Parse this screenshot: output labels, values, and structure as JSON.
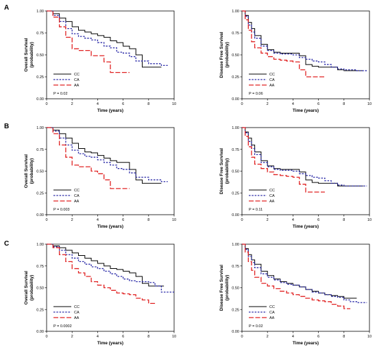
{
  "legend_labels": [
    "CC",
    "CA",
    "AA"
  ],
  "colors": {
    "CC": "#000000",
    "CA": "#2b2ba8",
    "AA": "#e02020"
  },
  "chart_data": [
    {
      "type": "line",
      "panel": "A",
      "ylabel": "Overall Survival (probability)",
      "xlabel": "Time (years)",
      "xlim": [
        0,
        10
      ],
      "ylim": [
        0,
        1
      ],
      "xticks": [
        0,
        2,
        4,
        6,
        8,
        10
      ],
      "yticks": [
        0.0,
        0.25,
        0.5,
        0.75,
        1.0
      ],
      "legend_position": "bottom-left",
      "pvalue": "P = 0.02",
      "series": [
        {
          "name": "CC",
          "x": [
            0,
            0.5,
            1,
            1.5,
            2,
            2.5,
            3,
            3.5,
            4,
            4.5,
            5,
            5.5,
            6,
            6.5,
            7,
            7.5,
            8,
            8.5,
            9
          ],
          "y": [
            1,
            0.97,
            0.92,
            0.88,
            0.82,
            0.78,
            0.76,
            0.74,
            0.72,
            0.7,
            0.66,
            0.64,
            0.6,
            0.57,
            0.5,
            0.36,
            0.36,
            0.36,
            0.36
          ]
        },
        {
          "name": "CA",
          "x": [
            0,
            0.5,
            1,
            1.5,
            2,
            2.5,
            3,
            3.5,
            4,
            4.5,
            5,
            5.5,
            6,
            6.5,
            7,
            8,
            9,
            9.5
          ],
          "y": [
            1,
            0.95,
            0.88,
            0.8,
            0.74,
            0.71,
            0.69,
            0.67,
            0.64,
            0.6,
            0.58,
            0.53,
            0.52,
            0.48,
            0.43,
            0.4,
            0.38,
            0.38
          ]
        },
        {
          "name": "AA",
          "x": [
            0,
            0.5,
            1,
            1.5,
            2,
            2.5,
            3,
            3.5,
            4,
            4.5,
            5,
            5.5,
            6,
            6.5
          ],
          "y": [
            1,
            0.93,
            0.82,
            0.7,
            0.57,
            0.55,
            0.55,
            0.49,
            0.49,
            0.42,
            0.3,
            0.3,
            0.3,
            0.3
          ]
        }
      ]
    },
    {
      "type": "line",
      "panel": "A",
      "ylabel": "Disease Free Survival (probability)",
      "xlabel": "Time (years)",
      "xlim": [
        0,
        10
      ],
      "ylim": [
        0,
        1
      ],
      "xticks": [
        0,
        2,
        4,
        6,
        8,
        10
      ],
      "yticks": [
        0.0,
        0.25,
        0.5,
        0.75,
        1.0
      ],
      "legend_position": "bottom-left",
      "pvalue": "P = 0.06",
      "series": [
        {
          "name": "CC",
          "x": [
            0,
            0.25,
            0.5,
            0.75,
            1,
            1.5,
            2,
            2.5,
            3,
            3.5,
            4,
            4.5,
            5,
            5.5,
            6,
            6.5,
            7,
            7.5,
            8,
            9,
            9.5
          ],
          "y": [
            1,
            0.95,
            0.87,
            0.8,
            0.72,
            0.62,
            0.56,
            0.53,
            0.52,
            0.52,
            0.52,
            0.49,
            0.39,
            0.37,
            0.36,
            0.36,
            0.36,
            0.33,
            0.32,
            0.32,
            0.32
          ]
        },
        {
          "name": "CA",
          "x": [
            0,
            0.25,
            0.5,
            0.75,
            1,
            1.5,
            2,
            2.5,
            3,
            3.5,
            4,
            4.5,
            5,
            5.5,
            6,
            6.5,
            7,
            7.5,
            8,
            9,
            9.8
          ],
          "y": [
            1,
            0.94,
            0.84,
            0.76,
            0.69,
            0.6,
            0.55,
            0.52,
            0.51,
            0.51,
            0.5,
            0.47,
            0.45,
            0.43,
            0.42,
            0.39,
            0.36,
            0.34,
            0.33,
            0.32,
            0.32
          ]
        },
        {
          "name": "AA",
          "x": [
            0,
            0.25,
            0.5,
            0.75,
            1,
            1.5,
            2,
            2.5,
            3,
            3.5,
            4,
            4.5,
            5,
            5.5,
            6,
            6.5
          ],
          "y": [
            1,
            0.9,
            0.78,
            0.65,
            0.58,
            0.52,
            0.48,
            0.45,
            0.44,
            0.43,
            0.42,
            0.33,
            0.25,
            0.25,
            0.25,
            0.25
          ]
        }
      ]
    },
    {
      "type": "line",
      "panel": "B",
      "ylabel": "Overall Survival (probability)",
      "xlabel": "Time (years)",
      "xlim": [
        0,
        10
      ],
      "ylim": [
        0,
        1
      ],
      "xticks": [
        0,
        2,
        4,
        6,
        8,
        10
      ],
      "yticks": [
        0.0,
        0.25,
        0.5,
        0.75,
        1.0
      ],
      "legend_position": "bottom-left",
      "pvalue": "P = 0.003",
      "series": [
        {
          "name": "CC",
          "x": [
            0,
            0.5,
            1,
            1.5,
            2,
            2.5,
            3,
            3.5,
            4,
            4.5,
            5,
            5.5,
            6,
            6.5,
            7,
            7.5,
            8,
            8.5,
            9
          ],
          "y": [
            1,
            0.97,
            0.93,
            0.88,
            0.82,
            0.76,
            0.72,
            0.71,
            0.68,
            0.65,
            0.62,
            0.6,
            0.6,
            0.52,
            0.4,
            0.36,
            0.36,
            0.36,
            0.36
          ]
        },
        {
          "name": "CA",
          "x": [
            0,
            0.5,
            1,
            1.5,
            2,
            2.5,
            3,
            3.5,
            4,
            4.5,
            5,
            5.5,
            6,
            6.5,
            7,
            8,
            9,
            9.5
          ],
          "y": [
            1,
            0.96,
            0.88,
            0.8,
            0.74,
            0.7,
            0.67,
            0.66,
            0.63,
            0.6,
            0.57,
            0.53,
            0.52,
            0.48,
            0.43,
            0.4,
            0.38,
            0.38
          ]
        },
        {
          "name": "AA",
          "x": [
            0,
            0.5,
            1,
            1.5,
            2,
            2.5,
            3,
            3.5,
            4,
            4.5,
            5,
            5.5,
            6,
            6.5
          ],
          "y": [
            1,
            0.93,
            0.8,
            0.66,
            0.57,
            0.55,
            0.55,
            0.5,
            0.47,
            0.4,
            0.3,
            0.3,
            0.3,
            0.3
          ]
        }
      ]
    },
    {
      "type": "line",
      "panel": "B",
      "ylabel": "Disease Free Survival (probability)",
      "xlabel": "Time (years)",
      "xlim": [
        0,
        10
      ],
      "ylim": [
        0,
        1
      ],
      "xticks": [
        0,
        2,
        4,
        6,
        8,
        10
      ],
      "yticks": [
        0.0,
        0.25,
        0.5,
        0.75,
        1.0
      ],
      "legend_position": "bottom-left",
      "pvalue": "P = 0.11",
      "series": [
        {
          "name": "CC",
          "x": [
            0,
            0.25,
            0.5,
            0.75,
            1,
            1.5,
            2,
            2.5,
            3,
            3.5,
            4,
            4.5,
            5,
            5.5,
            6,
            6.5,
            7,
            7.5,
            8,
            9,
            9.5
          ],
          "y": [
            1,
            0.95,
            0.88,
            0.8,
            0.72,
            0.62,
            0.56,
            0.53,
            0.52,
            0.52,
            0.52,
            0.49,
            0.4,
            0.37,
            0.36,
            0.36,
            0.36,
            0.33,
            0.33,
            0.33,
            0.33
          ]
        },
        {
          "name": "CA",
          "x": [
            0,
            0.25,
            0.5,
            0.75,
            1,
            1.5,
            2,
            2.5,
            3,
            3.5,
            4,
            4.5,
            5,
            5.5,
            6,
            6.5,
            7,
            7.5,
            8,
            9,
            9.8
          ],
          "y": [
            1,
            0.94,
            0.84,
            0.76,
            0.69,
            0.6,
            0.55,
            0.52,
            0.51,
            0.51,
            0.5,
            0.47,
            0.45,
            0.43,
            0.42,
            0.39,
            0.36,
            0.34,
            0.33,
            0.33,
            0.33
          ]
        },
        {
          "name": "AA",
          "x": [
            0,
            0.25,
            0.5,
            0.75,
            1,
            1.5,
            2,
            2.5,
            3,
            3.5,
            4,
            4.5,
            5,
            5.5,
            6,
            6.5
          ],
          "y": [
            1,
            0.9,
            0.78,
            0.66,
            0.58,
            0.53,
            0.49,
            0.46,
            0.45,
            0.44,
            0.43,
            0.35,
            0.26,
            0.26,
            0.26,
            0.26
          ]
        }
      ]
    },
    {
      "type": "line",
      "panel": "C",
      "ylabel": "Overall Survival (probability)",
      "xlabel": "Time (years)",
      "xlim": [
        0,
        10
      ],
      "ylim": [
        0,
        1
      ],
      "xticks": [
        0,
        2,
        4,
        6,
        8,
        10
      ],
      "yticks": [
        0.0,
        0.25,
        0.5,
        0.75,
        1.0
      ],
      "legend_position": "bottom-left",
      "pvalue": "P = 0.0002",
      "series": [
        {
          "name": "CC",
          "x": [
            0,
            0.5,
            1,
            1.5,
            2,
            2.5,
            3,
            3.5,
            4,
            4.5,
            5,
            5.5,
            6,
            6.5,
            7,
            7.5,
            8,
            8.5,
            9.2
          ],
          "y": [
            1,
            0.98,
            0.96,
            0.93,
            0.9,
            0.87,
            0.84,
            0.81,
            0.78,
            0.75,
            0.72,
            0.71,
            0.69,
            0.67,
            0.63,
            0.55,
            0.52,
            0.52,
            0.52
          ]
        },
        {
          "name": "CA",
          "x": [
            0,
            0.5,
            1,
            1.5,
            2,
            2.5,
            3,
            3.5,
            4,
            4.5,
            5,
            5.5,
            6,
            6.5,
            7,
            7.5,
            8,
            8.5,
            9,
            9.5,
            10
          ],
          "y": [
            1,
            0.97,
            0.93,
            0.88,
            0.84,
            0.8,
            0.77,
            0.74,
            0.72,
            0.69,
            0.66,
            0.63,
            0.6,
            0.58,
            0.57,
            0.57,
            0.56,
            0.52,
            0.45,
            0.45,
            0.45
          ]
        },
        {
          "name": "AA",
          "x": [
            0,
            0.5,
            1,
            1.5,
            2,
            2.5,
            3,
            3.5,
            4,
            4.5,
            5,
            5.5,
            6,
            6.5,
            7,
            7.5,
            8,
            8.5
          ],
          "y": [
            1,
            0.96,
            0.88,
            0.8,
            0.72,
            0.67,
            0.63,
            0.57,
            0.53,
            0.5,
            0.47,
            0.44,
            0.43,
            0.42,
            0.38,
            0.36,
            0.32,
            0.32
          ]
        }
      ]
    },
    {
      "type": "line",
      "panel": "C",
      "ylabel": "Disease Free Survival (probability)",
      "xlabel": "Time (years)",
      "xlim": [
        0,
        10
      ],
      "ylim": [
        0,
        1
      ],
      "xticks": [
        0,
        2,
        4,
        6,
        8,
        10
      ],
      "yticks": [
        0.0,
        0.25,
        0.5,
        0.75,
        1.0
      ],
      "legend_position": "bottom-left",
      "pvalue": "P = 0.02",
      "series": [
        {
          "name": "CC",
          "x": [
            0,
            0.25,
            0.5,
            0.75,
            1,
            1.5,
            2,
            2.5,
            3,
            3.5,
            4,
            4.5,
            5,
            5.5,
            6,
            6.5,
            7,
            7.5,
            8,
            8.5,
            9
          ],
          "y": [
            1,
            0.95,
            0.88,
            0.82,
            0.77,
            0.69,
            0.64,
            0.6,
            0.57,
            0.55,
            0.53,
            0.51,
            0.48,
            0.46,
            0.44,
            0.42,
            0.41,
            0.4,
            0.38,
            0.38,
            0.38
          ]
        },
        {
          "name": "CA",
          "x": [
            0,
            0.25,
            0.5,
            0.75,
            1,
            1.5,
            2,
            2.5,
            3,
            3.5,
            4,
            4.5,
            5,
            5.5,
            6,
            6.5,
            7,
            7.5,
            8,
            8.5,
            9,
            9.8
          ],
          "y": [
            1,
            0.94,
            0.86,
            0.79,
            0.73,
            0.66,
            0.62,
            0.59,
            0.56,
            0.54,
            0.53,
            0.51,
            0.48,
            0.45,
            0.44,
            0.42,
            0.4,
            0.39,
            0.36,
            0.34,
            0.33,
            0.33
          ]
        },
        {
          "name": "AA",
          "x": [
            0,
            0.25,
            0.5,
            0.75,
            1,
            1.5,
            2,
            2.5,
            3,
            3.5,
            4,
            4.5,
            5,
            5.5,
            6,
            6.5,
            7,
            7.5,
            8,
            8.5
          ],
          "y": [
            1,
            0.91,
            0.8,
            0.7,
            0.62,
            0.55,
            0.52,
            0.49,
            0.46,
            0.44,
            0.42,
            0.4,
            0.38,
            0.36,
            0.35,
            0.34,
            0.31,
            0.29,
            0.26,
            0.26
          ]
        }
      ]
    }
  ]
}
